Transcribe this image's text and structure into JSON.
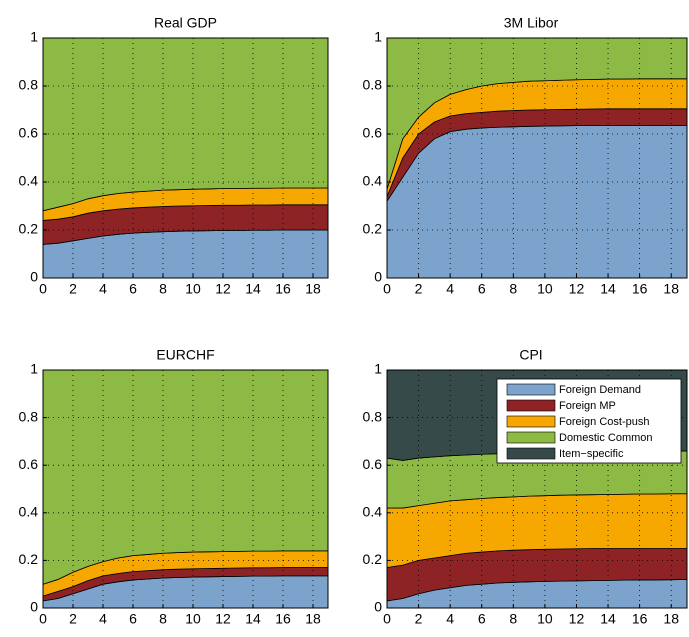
{
  "chart_data": [
    {
      "type": "area",
      "stacked": true,
      "title": "Real GDP",
      "x": [
        0,
        1,
        2,
        3,
        4,
        5,
        6,
        7,
        8,
        9,
        10,
        11,
        12,
        13,
        14,
        15,
        16,
        17,
        18,
        19
      ],
      "xlim": [
        0,
        19
      ],
      "xticks": [
        0,
        2,
        4,
        6,
        8,
        10,
        12,
        14,
        16,
        18
      ],
      "ylim": [
        0,
        1
      ],
      "yticks": [
        0,
        0.2,
        0.4,
        0.6,
        0.8,
        1
      ],
      "grid": true,
      "series": [
        {
          "name": "Foreign Demand",
          "color": "#7ba3cc",
          "values": [
            0.14,
            0.145,
            0.155,
            0.165,
            0.175,
            0.182,
            0.187,
            0.19,
            0.193,
            0.195,
            0.196,
            0.197,
            0.198,
            0.198,
            0.199,
            0.199,
            0.2,
            0.2,
            0.2,
            0.2
          ]
        },
        {
          "name": "Foreign MP",
          "color": "#8e2326",
          "values": [
            0.1,
            0.1,
            0.1,
            0.105,
            0.105,
            0.105,
            0.105,
            0.105,
            0.105,
            0.105,
            0.105,
            0.105,
            0.105,
            0.105,
            0.105,
            0.105,
            0.105,
            0.105,
            0.105,
            0.105
          ]
        },
        {
          "name": "Foreign Cost-push",
          "color": "#f7a800",
          "values": [
            0.04,
            0.05,
            0.055,
            0.06,
            0.063,
            0.065,
            0.066,
            0.067,
            0.068,
            0.068,
            0.069,
            0.069,
            0.07,
            0.07,
            0.07,
            0.07,
            0.07,
            0.07,
            0.07,
            0.07
          ]
        },
        {
          "name": "Domestic Common",
          "color": "#8cba44",
          "values": [
            0.72,
            0.705,
            0.69,
            0.67,
            0.657,
            0.648,
            0.642,
            0.638,
            0.634,
            0.632,
            0.63,
            0.629,
            0.627,
            0.627,
            0.626,
            0.626,
            0.625,
            0.625,
            0.625,
            0.625
          ]
        }
      ]
    },
    {
      "type": "area",
      "stacked": true,
      "title": "3M Libor",
      "x": [
        0,
        1,
        2,
        3,
        4,
        5,
        6,
        7,
        8,
        9,
        10,
        11,
        12,
        13,
        14,
        15,
        16,
        17,
        18,
        19
      ],
      "xlim": [
        0,
        19
      ],
      "xticks": [
        0,
        2,
        4,
        6,
        8,
        10,
        12,
        14,
        16,
        18
      ],
      "ylim": [
        0,
        1
      ],
      "yticks": [
        0,
        0.2,
        0.4,
        0.6,
        0.8,
        1
      ],
      "grid": true,
      "series": [
        {
          "name": "Foreign Demand",
          "color": "#7ba3cc",
          "values": [
            0.32,
            0.42,
            0.52,
            0.58,
            0.61,
            0.62,
            0.625,
            0.628,
            0.63,
            0.632,
            0.633,
            0.634,
            0.635,
            0.635,
            0.635,
            0.635,
            0.635,
            0.635,
            0.635,
            0.635
          ]
        },
        {
          "name": "Foreign MP",
          "color": "#8e2326",
          "values": [
            0.02,
            0.08,
            0.08,
            0.07,
            0.065,
            0.065,
            0.065,
            0.067,
            0.068,
            0.068,
            0.068,
            0.068,
            0.068,
            0.069,
            0.07,
            0.07,
            0.07,
            0.07,
            0.07,
            0.07
          ]
        },
        {
          "name": "Foreign Cost-push",
          "color": "#f7a800",
          "values": [
            0.03,
            0.08,
            0.07,
            0.08,
            0.09,
            0.1,
            0.11,
            0.115,
            0.117,
            0.12,
            0.121,
            0.122,
            0.123,
            0.123,
            0.124,
            0.124,
            0.125,
            0.125,
            0.125,
            0.125
          ]
        },
        {
          "name": "Domestic Common",
          "color": "#8cba44",
          "values": [
            0.63,
            0.42,
            0.33,
            0.27,
            0.235,
            0.215,
            0.2,
            0.19,
            0.185,
            0.18,
            0.178,
            0.176,
            0.174,
            0.173,
            0.171,
            0.171,
            0.17,
            0.17,
            0.17,
            0.17
          ]
        }
      ]
    },
    {
      "type": "area",
      "stacked": true,
      "title": "EURCHF",
      "x": [
        0,
        1,
        2,
        3,
        4,
        5,
        6,
        7,
        8,
        9,
        10,
        11,
        12,
        13,
        14,
        15,
        16,
        17,
        18,
        19
      ],
      "xlim": [
        0,
        19
      ],
      "xticks": [
        0,
        2,
        4,
        6,
        8,
        10,
        12,
        14,
        16,
        18
      ],
      "ylim": [
        0,
        1
      ],
      "yticks": [
        0,
        0.2,
        0.4,
        0.6,
        0.8,
        1
      ],
      "grid": true,
      "series": [
        {
          "name": "Foreign Demand",
          "color": "#7ba3cc",
          "values": [
            0.03,
            0.04,
            0.06,
            0.08,
            0.1,
            0.11,
            0.118,
            0.122,
            0.126,
            0.128,
            0.13,
            0.131,
            0.132,
            0.133,
            0.134,
            0.134,
            0.135,
            0.135,
            0.135,
            0.135
          ]
        },
        {
          "name": "Foreign MP",
          "color": "#8e2326",
          "values": [
            0.02,
            0.03,
            0.03,
            0.035,
            0.035,
            0.035,
            0.035,
            0.035,
            0.035,
            0.035,
            0.035,
            0.035,
            0.035,
            0.035,
            0.035,
            0.035,
            0.035,
            0.035,
            0.035,
            0.035
          ]
        },
        {
          "name": "Foreign Cost-push",
          "color": "#f7a800",
          "values": [
            0.05,
            0.05,
            0.06,
            0.06,
            0.06,
            0.065,
            0.067,
            0.068,
            0.069,
            0.07,
            0.07,
            0.07,
            0.07,
            0.07,
            0.07,
            0.07,
            0.07,
            0.07,
            0.07,
            0.07
          ]
        },
        {
          "name": "Domestic Common",
          "color": "#8cba44",
          "values": [
            0.9,
            0.88,
            0.85,
            0.825,
            0.805,
            0.79,
            0.78,
            0.775,
            0.77,
            0.767,
            0.765,
            0.764,
            0.763,
            0.762,
            0.761,
            0.761,
            0.76,
            0.76,
            0.76,
            0.76
          ]
        }
      ]
    },
    {
      "type": "area",
      "stacked": true,
      "title": "CPI",
      "x": [
        0,
        1,
        2,
        3,
        4,
        5,
        6,
        7,
        8,
        9,
        10,
        11,
        12,
        13,
        14,
        15,
        16,
        17,
        18,
        19
      ],
      "xlim": [
        0,
        19
      ],
      "xticks": [
        0,
        2,
        4,
        6,
        8,
        10,
        12,
        14,
        16,
        18
      ],
      "ylim": [
        0,
        1
      ],
      "yticks": [
        0,
        0.2,
        0.4,
        0.6,
        0.8,
        1
      ],
      "grid": true,
      "legend": "upper right",
      "series": [
        {
          "name": "Foreign Demand",
          "color": "#7ba3cc",
          "values": [
            0.03,
            0.04,
            0.06,
            0.075,
            0.085,
            0.095,
            0.1,
            0.105,
            0.108,
            0.11,
            0.112,
            0.113,
            0.114,
            0.115,
            0.116,
            0.117,
            0.118,
            0.118,
            0.119,
            0.12
          ]
        },
        {
          "name": "Foreign MP",
          "color": "#8e2326",
          "values": [
            0.14,
            0.14,
            0.14,
            0.135,
            0.135,
            0.135,
            0.135,
            0.135,
            0.135,
            0.135,
            0.135,
            0.135,
            0.135,
            0.135,
            0.134,
            0.133,
            0.132,
            0.132,
            0.131,
            0.13
          ]
        },
        {
          "name": "Foreign Cost-push",
          "color": "#f7a800",
          "values": [
            0.25,
            0.24,
            0.23,
            0.23,
            0.23,
            0.225,
            0.225,
            0.224,
            0.224,
            0.225,
            0.225,
            0.226,
            0.226,
            0.226,
            0.227,
            0.228,
            0.229,
            0.229,
            0.23,
            0.23
          ]
        },
        {
          "name": "Domestic Common",
          "color": "#8cba44",
          "values": [
            0.21,
            0.2,
            0.2,
            0.195,
            0.19,
            0.188,
            0.186,
            0.184,
            0.183,
            0.181,
            0.18,
            0.179,
            0.179,
            0.179,
            0.179,
            0.179,
            0.179,
            0.179,
            0.179,
            0.18
          ]
        },
        {
          "name": "Item−specific",
          "color": "#364a4a",
          "values": [
            0.37,
            0.38,
            0.37,
            0.365,
            0.36,
            0.357,
            0.354,
            0.352,
            0.35,
            0.349,
            0.348,
            0.347,
            0.346,
            0.345,
            0.344,
            0.343,
            0.342,
            0.342,
            0.341,
            0.34
          ]
        }
      ]
    }
  ]
}
